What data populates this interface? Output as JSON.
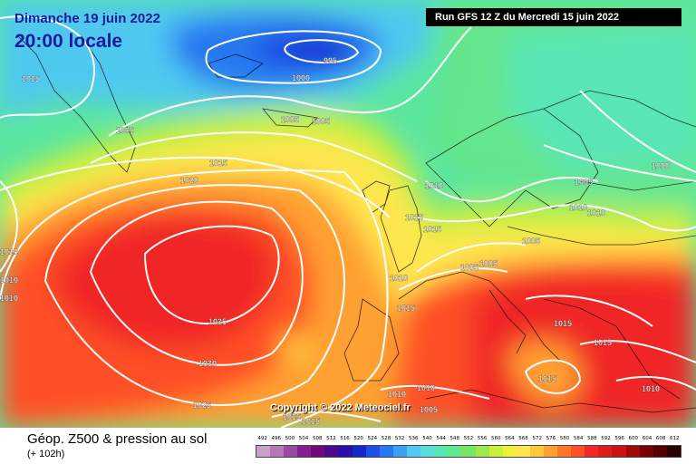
{
  "header": {
    "date": "Dimanche 19 juin 2022",
    "time": "20:00 locale",
    "run": "Run GFS 12 Z du Mercredi 15 juin 2022"
  },
  "footer": {
    "copyright": "Copyright © 2022 Meteociel.fr",
    "legend_title": "Géop. Z500 & pression au sol",
    "legend_subtitle": "(+ 102h)"
  },
  "scale": {
    "values": [
      "492",
      "496",
      "500",
      "504",
      "508",
      "512",
      "516",
      "520",
      "524",
      "528",
      "532",
      "536",
      "540",
      "544",
      "548",
      "552",
      "556",
      "560",
      "564",
      "568",
      "572",
      "576",
      "580",
      "584",
      "588",
      "592",
      "596",
      "600",
      "604",
      "608",
      "612"
    ],
    "colors": [
      "#c8a0c8",
      "#b478b4",
      "#9a4aa0",
      "#82208c",
      "#6e0a7a",
      "#4a0a8c",
      "#2a10a8",
      "#1428c8",
      "#1e50e6",
      "#2878f0",
      "#3ca0f0",
      "#50c8f0",
      "#5adcdc",
      "#5ae6b4",
      "#64e68c",
      "#78e664",
      "#a0e650",
      "#c8f03c",
      "#f0f03c",
      "#ffe650",
      "#ffc83c",
      "#ffa032",
      "#ff7828",
      "#ff5028",
      "#f02828",
      "#dc1e1e",
      "#c81414",
      "#a00a0a",
      "#780000",
      "#500000",
      "#2a0000"
    ]
  },
  "isobars": [
    {
      "label": "995"
    },
    {
      "label": "1000"
    },
    {
      "label": "1015"
    },
    {
      "label": "1005"
    },
    {
      "label": "1005"
    },
    {
      "label": "1005"
    },
    {
      "label": "1015"
    },
    {
      "label": "1020"
    },
    {
      "label": "1010"
    },
    {
      "label": "1000"
    },
    {
      "label": "1005"
    },
    {
      "label": "1010"
    },
    {
      "label": "1010"
    },
    {
      "label": "1015"
    },
    {
      "label": "1015"
    },
    {
      "label": "1005"
    },
    {
      "label": "1005"
    },
    {
      "label": "1005"
    },
    {
      "label": "1010"
    },
    {
      "label": "1015"
    },
    {
      "label": "1035"
    },
    {
      "label": "1030"
    },
    {
      "label": "1025"
    },
    {
      "label": "1015"
    },
    {
      "label": "1015"
    },
    {
      "label": "1015"
    },
    {
      "label": "1010"
    },
    {
      "label": "1010"
    },
    {
      "label": "1010"
    },
    {
      "label": "1015"
    },
    {
      "label": "1010"
    },
    {
      "label": "1010"
    },
    {
      "label": "1010"
    },
    {
      "label": "1005"
    },
    {
      "label": "1015"
    }
  ]
}
